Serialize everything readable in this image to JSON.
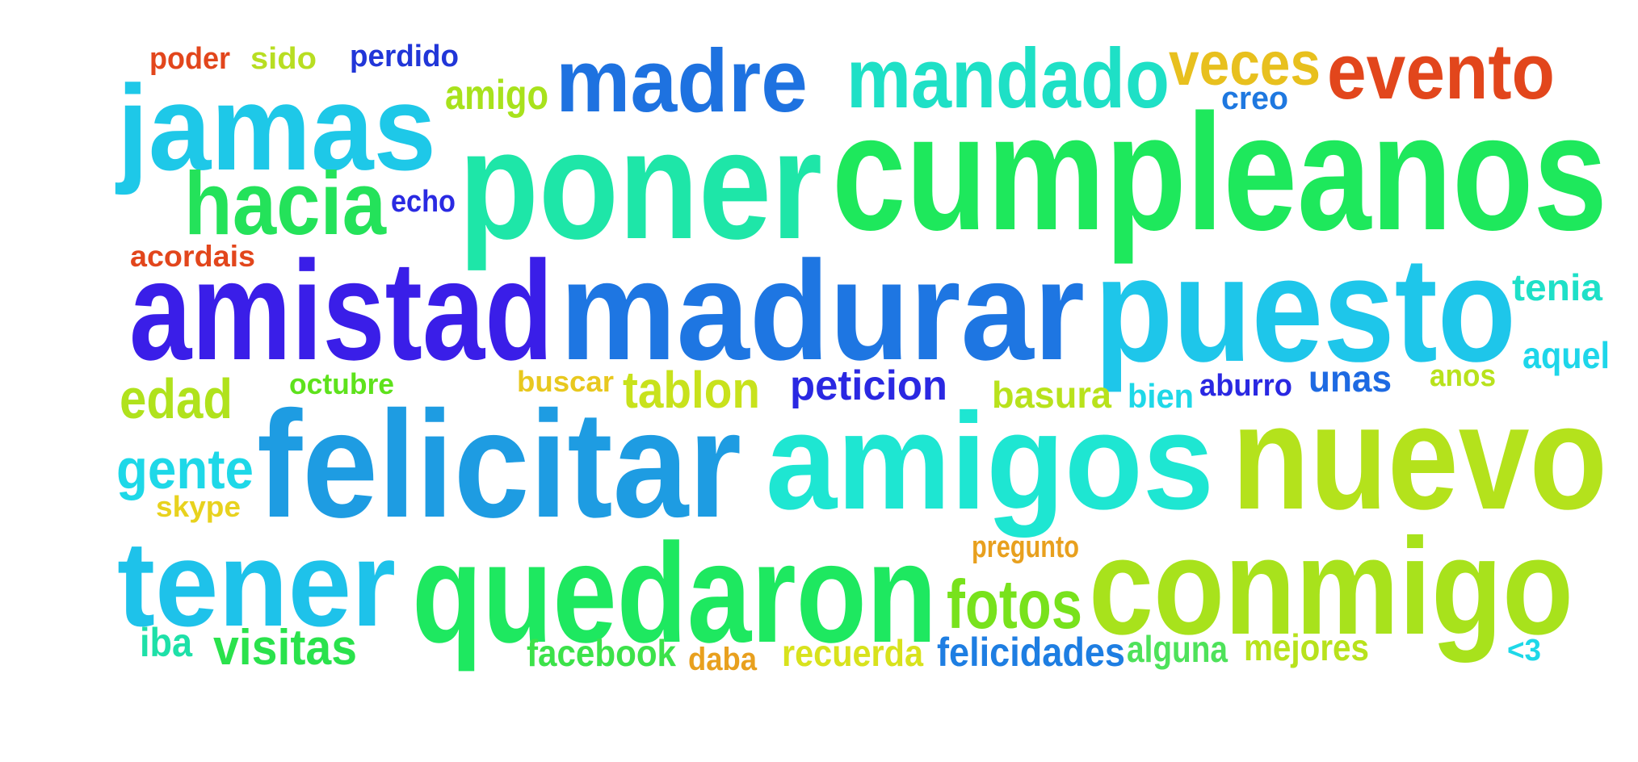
{
  "words": [
    {
      "text": "poder",
      "color": "#e2461c"
    },
    {
      "text": "sido",
      "color": "#b8de22"
    },
    {
      "text": "perdido",
      "color": "#2136d8"
    },
    {
      "text": "jamas",
      "color": "#1ec8e8"
    },
    {
      "text": "amigo",
      "color": "#a8e21c"
    },
    {
      "text": "madre",
      "color": "#1e72e0"
    },
    {
      "text": "mandado",
      "color": "#1ee0c6"
    },
    {
      "text": "veces",
      "color": "#e8c01e"
    },
    {
      "text": "evento",
      "color": "#e2461c"
    },
    {
      "text": "creo",
      "color": "#1e78e0"
    },
    {
      "text": "poner",
      "color": "#1ee6a8"
    },
    {
      "text": "cumpleanos",
      "color": "#1ee85c"
    },
    {
      "text": "hacia",
      "color": "#24e25a"
    },
    {
      "text": "echo",
      "color": "#2a2ae2"
    },
    {
      "text": "acordais",
      "color": "#e2461c"
    },
    {
      "text": "amistad",
      "color": "#3a1ee8"
    },
    {
      "text": "madurar",
      "color": "#1e76e2"
    },
    {
      "text": "puesto",
      "color": "#1ec6ea"
    },
    {
      "text": "tenia",
      "color": "#1ee0c8"
    },
    {
      "text": "aquel",
      "color": "#1ed6ea"
    },
    {
      "text": "edad",
      "color": "#b0e21c"
    },
    {
      "text": "octubre",
      "color": "#5ee21c"
    },
    {
      "text": "buscar",
      "color": "#e8c81e"
    },
    {
      "text": "tablon",
      "color": "#c8e21c"
    },
    {
      "text": "peticion",
      "color": "#2a28e2"
    },
    {
      "text": "basura",
      "color": "#b8e21c"
    },
    {
      "text": "bien",
      "color": "#1ed8e8"
    },
    {
      "text": "aburro",
      "color": "#2a28e2"
    },
    {
      "text": "unas",
      "color": "#1e6ae2"
    },
    {
      "text": "anos",
      "color": "#b8e21c"
    },
    {
      "text": "gente",
      "color": "#1ed8e8"
    },
    {
      "text": "felicitar",
      "color": "#1e9ce2"
    },
    {
      "text": "amigos",
      "color": "#1ee6d2"
    },
    {
      "text": "nuevo",
      "color": "#b4e21c"
    },
    {
      "text": "skype",
      "color": "#e8d21e"
    },
    {
      "text": "tener",
      "color": "#1ec2ea"
    },
    {
      "text": "quedaron",
      "color": "#1ee860"
    },
    {
      "text": "pregunto",
      "color": "#e8a01e"
    },
    {
      "text": "fotos",
      "color": "#78e21c"
    },
    {
      "text": "conmigo",
      "color": "#a8e21c"
    },
    {
      "text": "iba",
      "color": "#1ee0a8"
    },
    {
      "text": "visitas",
      "color": "#2ae24c"
    },
    {
      "text": "facebook",
      "color": "#3ce24a"
    },
    {
      "text": "daba",
      "color": "#e8a01e"
    },
    {
      "text": "recuerda",
      "color": "#d8e21c"
    },
    {
      "text": "felicidades",
      "color": "#1e7ee2"
    },
    {
      "text": "alguna",
      "color": "#4ee25a"
    },
    {
      "text": "mejores",
      "color": "#b8e21c"
    },
    {
      "text": "<3",
      "color": "#1ed8e8"
    }
  ]
}
